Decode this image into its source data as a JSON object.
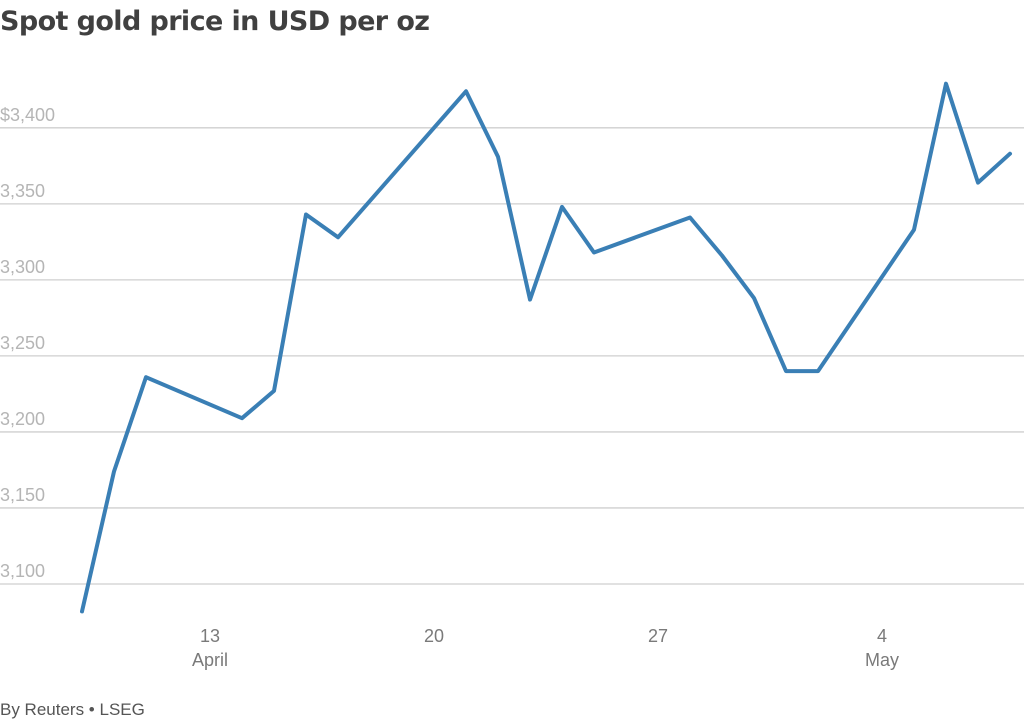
{
  "chart_data": {
    "type": "line",
    "title": "Spot gold price in USD per oz",
    "xlabel": "",
    "ylabel": "",
    "ylim": [
      3075,
      3440
    ],
    "xlim": [
      "2025-04-08",
      "2025-05-09"
    ],
    "grid": true,
    "legend": "none",
    "y_ticks": [
      {
        "value": 3400,
        "label": "$3,400"
      },
      {
        "value": 3350,
        "label": "3,350"
      },
      {
        "value": 3300,
        "label": "3,300"
      },
      {
        "value": 3250,
        "label": "3,250"
      },
      {
        "value": 3200,
        "label": "3,200"
      },
      {
        "value": 3150,
        "label": "3,150"
      },
      {
        "value": 3100,
        "label": "3,100"
      }
    ],
    "x_ticks": [
      {
        "date": "2025-04-13",
        "label": "13",
        "sublabel": "April"
      },
      {
        "date": "2025-04-20",
        "label": "20",
        "sublabel": ""
      },
      {
        "date": "2025-04-27",
        "label": "27",
        "sublabel": ""
      },
      {
        "date": "2025-05-04",
        "label": "4",
        "sublabel": "May"
      }
    ],
    "series": [
      {
        "color": "#3a7fb5",
        "points": [
          {
            "date": "2025-04-09",
            "value": 3082
          },
          {
            "date": "2025-04-10",
            "value": 3174
          },
          {
            "date": "2025-04-11",
            "value": 3236
          },
          {
            "date": "2025-04-14",
            "value": 3209
          },
          {
            "date": "2025-04-15",
            "value": 3227
          },
          {
            "date": "2025-04-16",
            "value": 3343
          },
          {
            "date": "2025-04-17",
            "value": 3328
          },
          {
            "date": "2025-04-21",
            "value": 3424
          },
          {
            "date": "2025-04-22",
            "value": 3381
          },
          {
            "date": "2025-04-23",
            "value": 3287
          },
          {
            "date": "2025-04-24",
            "value": 3348
          },
          {
            "date": "2025-04-25",
            "value": 3318
          },
          {
            "date": "2025-04-28",
            "value": 3341
          },
          {
            "date": "2025-04-29",
            "value": 3316
          },
          {
            "date": "2025-04-30",
            "value": 3288
          },
          {
            "date": "2025-05-01",
            "value": 3240
          },
          {
            "date": "2025-05-02",
            "value": 3240
          },
          {
            "date": "2025-05-05",
            "value": 3333
          },
          {
            "date": "2025-05-06",
            "value": 3429
          },
          {
            "date": "2025-05-07",
            "value": 3364
          },
          {
            "date": "2025-05-08",
            "value": 3383
          }
        ]
      }
    ]
  },
  "source": "By Reuters • LSEG"
}
